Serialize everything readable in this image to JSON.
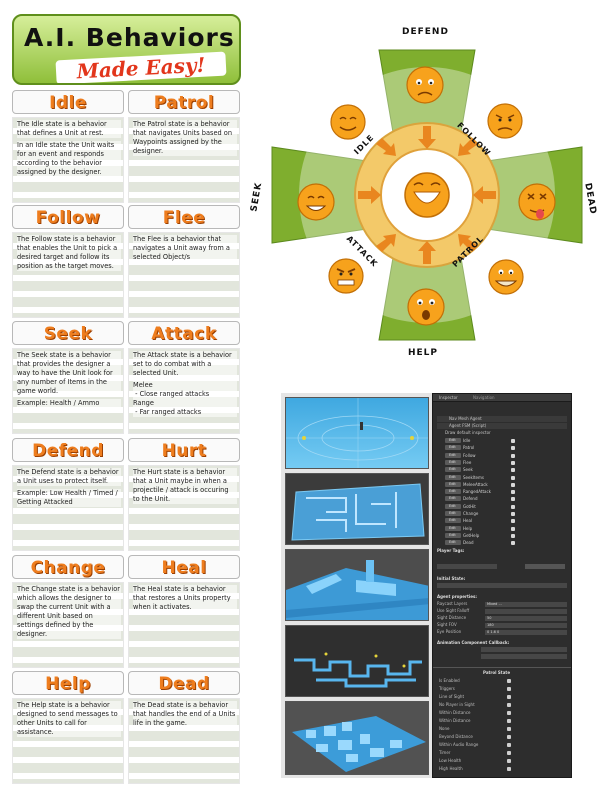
{
  "title": {
    "line1": "A.I. Behaviors",
    "line2": "Made Easy!"
  },
  "cards": [
    {
      "title": "Idle",
      "paragraphs": [
        "The Idle state is a behavior that defines a Unit at rest.",
        "In an Idle state the Unit waits for an event and responds according to the behavior assigned by the designer."
      ]
    },
    {
      "title": "Patrol",
      "paragraphs": [
        "The Patrol state is a behavior that navigates Units based on Waypoints assigned by the designer."
      ]
    },
    {
      "title": "Follow",
      "paragraphs": [
        "The Follow state is a behavior that enables the Unit to pick a desired target and follow its position as the target moves."
      ]
    },
    {
      "title": "Flee",
      "paragraphs": [
        "The Flee is a behavior that navigates a Unit away from a selected Object/s"
      ]
    },
    {
      "title": "Seek",
      "paragraphs": [
        "The Seek state is a behavior that provides the designer a way to have the Unit look for any number of Items in the game world.",
        "Example: Health / Ammo"
      ]
    },
    {
      "title": "Attack",
      "paragraphs": [
        "The Attack state is a behavior set to do combat with a selected Unit."
      ],
      "list": [
        "Melee",
        " - Close ranged attacks",
        "Range",
        " - Far ranged attacks"
      ]
    },
    {
      "title": "Defend",
      "paragraphs": [
        "The Defend state is a behavior a Unit uses to protect itself.",
        "Example: Low Health / Timed / Getting Attacked"
      ]
    },
    {
      "title": "Hurt",
      "paragraphs": [
        "The Hurt state is a behavior that a Unit maybe in when a projectile / attack is occuring to the Unit."
      ]
    },
    {
      "title": "Change",
      "paragraphs": [
        "The Change state is a behavior which allows the designer to swap the current Unit with a different Unit based on settings defined by the designer."
      ]
    },
    {
      "title": "Heal",
      "paragraphs": [
        "The Heal state is a behavior that restores a Units property when it activates."
      ]
    },
    {
      "title": "Help",
      "paragraphs": [
        "The Help state is a behavior designed to send messages to other Units to call for assistance."
      ]
    },
    {
      "title": "Dead",
      "paragraphs": [
        "The Dead state is a behavior that handles the end of a Units life in the game."
      ]
    }
  ],
  "wheel": {
    "outer_labels": {
      "top": "DEFEND",
      "left": "SEEK",
      "right": "DEAD",
      "bottom": "HELP"
    },
    "inner_labels": {
      "idle": "IDLE",
      "follow": "FOLLOW",
      "patrol": "PATROL",
      "attack": "ATTACK"
    },
    "colors": {
      "green": "#7fae2e",
      "ring": "#f3c969",
      "center": "#ffffff",
      "arrow": "#e9861f",
      "face": "#f7a21c"
    },
    "faces": [
      "angry-face-icon",
      "sad-face-icon",
      "dead-face-icon",
      "patrol-face-icon",
      "help-face-icon",
      "attack-face-icon",
      "seek-face-icon",
      "idle-face-icon",
      "center-laugh-face-icon"
    ]
  },
  "inspector": {
    "tabs": [
      "Inspector",
      "Navigation"
    ],
    "component1": "Nav Mesh Agent",
    "component2": "Agent FSM (Script)",
    "draw_default": "Draw default inspector",
    "edit_label": "Edit",
    "states": [
      "Idle",
      "Patrol",
      "Follow",
      "Flee",
      "Seek",
      "SeekItems",
      "MeleeAttack",
      "RangedAttack",
      "Defend",
      "GotHit",
      "Change",
      "Heal",
      "Help",
      "GetHelp",
      "Dead"
    ],
    "sections": {
      "player_tags": "Player Tags:",
      "initial_state": "Initial State:",
      "agent_properties": "Agent properties:",
      "animation": "Animation Component Callback:",
      "patrol_state": "Patrol State"
    },
    "fields": [
      {
        "k": "Raycast Layers",
        "v": "Mixed ..."
      },
      {
        "k": "Use Sight Falloff",
        "v": ""
      },
      {
        "k": "Sight Distance",
        "v": "50"
      },
      {
        "k": "Sight FOV",
        "v": "180"
      },
      {
        "k": "Eye Position",
        "v": "0   1.6   0"
      }
    ],
    "patrol_fields": [
      "Is Enabled",
      "Triggers",
      "Line of Sight",
      "No Player in Sight",
      "Within Distance",
      "Within Distance",
      "None",
      "Beyond Distance",
      "Within Audio Range",
      "Timer",
      "Low Health",
      "High Health"
    ]
  }
}
